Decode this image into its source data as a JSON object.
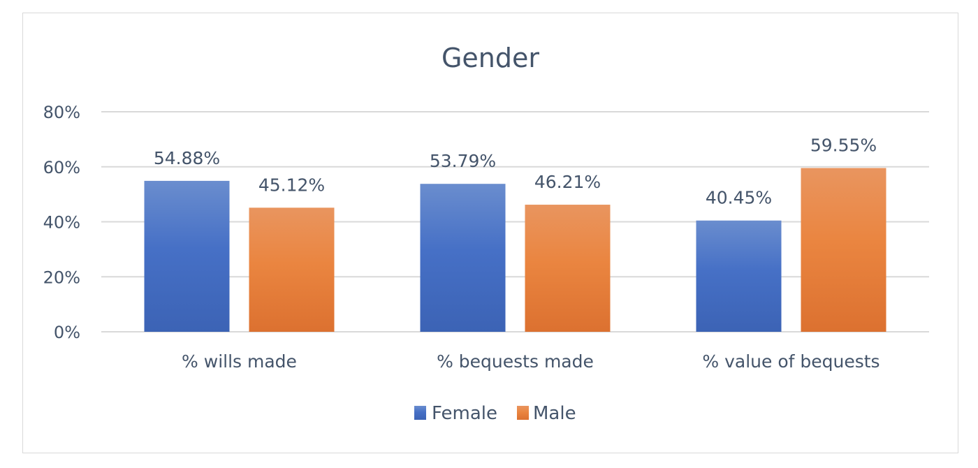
{
  "chart_data": {
    "type": "bar",
    "title": "Gender",
    "categories": [
      "% wills made",
      "% bequests made",
      "% value of bequests"
    ],
    "series": [
      {
        "name": "Female",
        "color": "#4472c4",
        "values": [
          54.88,
          53.79,
          40.45
        ],
        "labels": [
          "54.88%",
          "53.79%",
          "40.45%"
        ]
      },
      {
        "name": "Male",
        "color": "#ed7d31",
        "values": [
          45.12,
          46.21,
          59.55
        ],
        "labels": [
          "45.12%",
          "46.21%",
          "59.55%"
        ]
      }
    ],
    "yticks": [
      0,
      20,
      40,
      60,
      80
    ],
    "ytick_labels": [
      "0%",
      "20%",
      "40%",
      "60%",
      "80%"
    ],
    "ylim": [
      0,
      80
    ],
    "xlabel": "",
    "ylabel": "",
    "grid": true,
    "legend_position": "bottom"
  }
}
